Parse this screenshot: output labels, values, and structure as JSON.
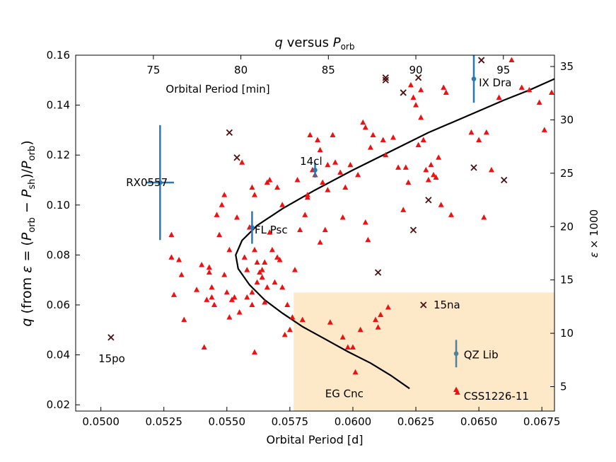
{
  "chart_data": {
    "type": "scatter",
    "title": "q versus P_orb",
    "xlabel": "Orbital Period [d]",
    "ylabel": "q (from ε = (P_orb − P_sh)/P_orb)",
    "xlim": [
      0.049,
      0.068
    ],
    "ylim": [
      0.0175,
      0.16
    ],
    "xticks": [
      "0.0500",
      "0.0525",
      "0.0550",
      "0.0575",
      "0.0600",
      "0.0625",
      "0.0650",
      "0.0675"
    ],
    "yticks": [
      "0.02",
      "0.04",
      "0.06",
      "0.08",
      "0.10",
      "0.12",
      "0.14",
      "0.16"
    ],
    "top_axis": {
      "label": "Orbital Period [min]",
      "ticks": [
        75,
        80,
        85,
        90,
        95
      ]
    },
    "right_axis": {
      "label": "ε × 1000",
      "ticks": [
        5,
        10,
        15,
        20,
        25,
        30,
        35
      ]
    },
    "grid": false,
    "shaded_region": {
      "x": [
        0.05765,
        0.068
      ],
      "y": [
        0.0175,
        0.065
      ],
      "color": "#fde9c8"
    },
    "curve": {
      "color": "#000000",
      "points": [
        [
          0.06225,
          0.0265
        ],
        [
          0.0615,
          0.0318
        ],
        [
          0.0607,
          0.0367
        ],
        [
          0.0598,
          0.0413
        ],
        [
          0.0589,
          0.0463
        ],
        [
          0.058,
          0.0513
        ],
        [
          0.0572,
          0.0567
        ],
        [
          0.0565,
          0.062
        ],
        [
          0.0559,
          0.068
        ],
        [
          0.05545,
          0.0745
        ],
        [
          0.05535,
          0.08
        ],
        [
          0.0556,
          0.0858
        ],
        [
          0.0562,
          0.0918
        ],
        [
          0.0572,
          0.0985
        ],
        [
          0.0585,
          0.106
        ],
        [
          0.06,
          0.114
        ],
        [
          0.0615,
          0.1215
        ],
        [
          0.063,
          0.129
        ],
        [
          0.0645,
          0.1355
        ],
        [
          0.066,
          0.142
        ],
        [
          0.067,
          0.146
        ],
        [
          0.068,
          0.1505
        ]
      ]
    },
    "series": [
      {
        "marker": "triangle",
        "color": "#ee1111",
        "points": [
          [
            0.0528,
            0.088
          ],
          [
            0.0529,
            0.064
          ],
          [
            0.0528,
            0.079
          ],
          [
            0.0531,
            0.078
          ],
          [
            0.0532,
            0.072
          ],
          [
            0.0533,
            0.054
          ],
          [
            0.0538,
            0.066
          ],
          [
            0.054,
            0.076
          ],
          [
            0.0541,
            0.043
          ],
          [
            0.0542,
            0.062
          ],
          [
            0.0543,
            0.075
          ],
          [
            0.0543,
            0.073
          ],
          [
            0.0544,
            0.063
          ],
          [
            0.0544,
            0.067
          ],
          [
            0.0545,
            0.06
          ],
          [
            0.0546,
            0.096
          ],
          [
            0.0547,
            0.088
          ],
          [
            0.0548,
            0.1
          ],
          [
            0.0549,
            0.104
          ],
          [
            0.055,
            0.065
          ],
          [
            0.0549,
            0.072
          ],
          [
            0.0551,
            0.055
          ],
          [
            0.0551,
            0.082
          ],
          [
            0.0552,
            0.062
          ],
          [
            0.0553,
            0.063
          ],
          [
            0.0554,
            0.095
          ],
          [
            0.0555,
            0.057
          ],
          [
            0.0556,
            0.117
          ],
          [
            0.0557,
            0.079
          ],
          [
            0.0558,
            0.063
          ],
          [
            0.0558,
            0.074
          ],
          [
            0.0559,
            0.091
          ],
          [
            0.056,
            0.06
          ],
          [
            0.056,
            0.065
          ],
          [
            0.056,
            0.107
          ],
          [
            0.0561,
            0.041
          ],
          [
            0.0561,
            0.104
          ],
          [
            0.0561,
            0.082
          ],
          [
            0.0562,
            0.077
          ],
          [
            0.0562,
            0.069
          ],
          [
            0.0563,
            0.073
          ],
          [
            0.0564,
            0.074
          ],
          [
            0.0564,
            0.071
          ],
          [
            0.0565,
            0.077
          ],
          [
            0.0565,
            0.061
          ],
          [
            0.0566,
            0.109
          ],
          [
            0.0566,
            0.067
          ],
          [
            0.0567,
            0.089
          ],
          [
            0.0567,
            0.11
          ],
          [
            0.0568,
            0.082
          ],
          [
            0.0569,
            0.069
          ],
          [
            0.057,
            0.107
          ],
          [
            0.057,
            0.079
          ],
          [
            0.0571,
            0.078
          ],
          [
            0.0572,
            0.1
          ],
          [
            0.0572,
            0.067
          ],
          [
            0.0573,
            0.048
          ],
          [
            0.0574,
            0.06
          ],
          [
            0.0575,
            0.05
          ],
          [
            0.0576,
            0.055
          ],
          [
            0.0577,
            0.074
          ],
          [
            0.0578,
            0.11
          ],
          [
            0.0579,
            0.09
          ],
          [
            0.058,
            0.054
          ],
          [
            0.0581,
            0.096
          ],
          [
            0.0582,
            0.104
          ],
          [
            0.0582,
            0.103
          ],
          [
            0.0583,
            0.128
          ],
          [
            0.0584,
            0.114
          ],
          [
            0.0585,
            0.112
          ],
          [
            0.0586,
            0.126
          ],
          [
            0.0587,
            0.122
          ],
          [
            0.0587,
            0.085
          ],
          [
            0.0588,
            0.109
          ],
          [
            0.0589,
            0.09
          ],
          [
            0.059,
            0.106
          ],
          [
            0.059,
            0.116
          ],
          [
            0.0591,
            0.053
          ],
          [
            0.0592,
            0.128
          ],
          [
            0.0593,
            0.117
          ],
          [
            0.0595,
            0.113
          ],
          [
            0.0596,
            0.095
          ],
          [
            0.0596,
            0.047
          ],
          [
            0.0597,
            0.107
          ],
          [
            0.0598,
            0.043
          ],
          [
            0.0599,
            0.116
          ],
          [
            0.06,
            0.043
          ],
          [
            0.0601,
            0.033
          ],
          [
            0.0602,
            0.112
          ],
          [
            0.0603,
            0.05
          ],
          [
            0.0604,
            0.133
          ],
          [
            0.0605,
            0.131
          ],
          [
            0.0605,
            0.093
          ],
          [
            0.0606,
            0.086
          ],
          [
            0.0607,
            0.123
          ],
          [
            0.0608,
            0.128
          ],
          [
            0.0609,
            0.054
          ],
          [
            0.061,
            0.051
          ],
          [
            0.0611,
            0.056
          ],
          [
            0.0612,
            0.126
          ],
          [
            0.0613,
            0.12
          ],
          [
            0.0614,
            0.059
          ],
          [
            0.0616,
            0.127
          ],
          [
            0.0618,
            0.115
          ],
          [
            0.062,
            0.098
          ],
          [
            0.0621,
            0.115
          ],
          [
            0.0622,
            0.109
          ],
          [
            0.0623,
            0.148
          ],
          [
            0.0624,
            0.143
          ],
          [
            0.0625,
            0.14
          ],
          [
            0.0626,
            0.124
          ],
          [
            0.0627,
            0.135
          ],
          [
            0.0627,
            0.146
          ],
          [
            0.0628,
            0.126
          ],
          [
            0.0629,
            0.114
          ],
          [
            0.063,
            0.11
          ],
          [
            0.0631,
            0.116
          ],
          [
            0.0632,
            0.112
          ],
          [
            0.0633,
            0.111
          ],
          [
            0.0634,
            0.119
          ],
          [
            0.0635,
            0.1
          ],
          [
            0.0636,
            0.147
          ],
          [
            0.0637,
            0.145
          ],
          [
            0.0639,
            0.096
          ],
          [
            0.0641,
            0.026
          ],
          [
            0.0647,
            0.129
          ],
          [
            0.065,
            0.126
          ],
          [
            0.0652,
            0.095
          ],
          [
            0.0653,
            0.129
          ],
          [
            0.0655,
            0.114
          ],
          [
            0.0658,
            0.143
          ],
          [
            0.0663,
            0.158
          ],
          [
            0.0667,
            0.147
          ],
          [
            0.067,
            0.146
          ],
          [
            0.0674,
            0.141
          ],
          [
            0.0676,
            0.13
          ],
          [
            0.068,
            0.145
          ]
        ]
      },
      {
        "marker": "x-cross",
        "color": "#4a0f0f",
        "points": [
          [
            0.0504,
            0.047
          ],
          [
            0.0551,
            0.129
          ],
          [
            0.0554,
            0.119
          ],
          [
            0.061,
            0.073
          ],
          [
            0.0613,
            0.151
          ],
          [
            0.0613,
            0.15
          ],
          [
            0.062,
            0.145
          ],
          [
            0.0624,
            0.09
          ],
          [
            0.0626,
            0.151
          ],
          [
            0.0628,
            0.06
          ],
          [
            0.063,
            0.102
          ],
          [
            0.0648,
            0.115
          ],
          [
            0.0651,
            0.158
          ],
          [
            0.066,
            0.11
          ]
        ]
      },
      {
        "marker": "errorbar",
        "color": "#2778b6",
        "points": [
          {
            "x": 0.05235,
            "y": 0.109,
            "xerr": 0.00055,
            "yerr": 0.023
          },
          {
            "x": 0.056,
            "y": 0.091,
            "xerr": 0,
            "yerr": 0.0065
          },
          {
            "x": 0.0585,
            "y": 0.114,
            "xerr": 0,
            "yerr": 0.003
          },
          {
            "x": 0.0648,
            "y": 0.1505,
            "xerr": 0,
            "yerr": 0.0095
          }
        ]
      },
      {
        "marker": "errorbar",
        "color": "#50809a",
        "points": [
          {
            "x": 0.0641,
            "y": 0.0405,
            "xerr": 0,
            "yerr": 0.0055
          }
        ]
      }
    ],
    "annotations": [
      {
        "text": "RX0557",
        "x": 0.051,
        "y": 0.109
      },
      {
        "text": "FL Psc",
        "x": 0.0561,
        "y": 0.09
      },
      {
        "text": "14cl",
        "x": 0.0579,
        "y": 0.1175
      },
      {
        "text": "IX Dra",
        "x": 0.065,
        "y": 0.149
      },
      {
        "text": "15na",
        "x": 0.0632,
        "y": 0.06
      },
      {
        "text": "15po",
        "x": 0.0499,
        "y": 0.0385
      },
      {
        "text": "EG Cnc",
        "x": 0.0589,
        "y": 0.0245
      },
      {
        "text": "QZ Lib",
        "x": 0.0644,
        "y": 0.04
      },
      {
        "text": "CSS1226-11",
        "x": 0.0644,
        "y": 0.0235
      }
    ]
  }
}
